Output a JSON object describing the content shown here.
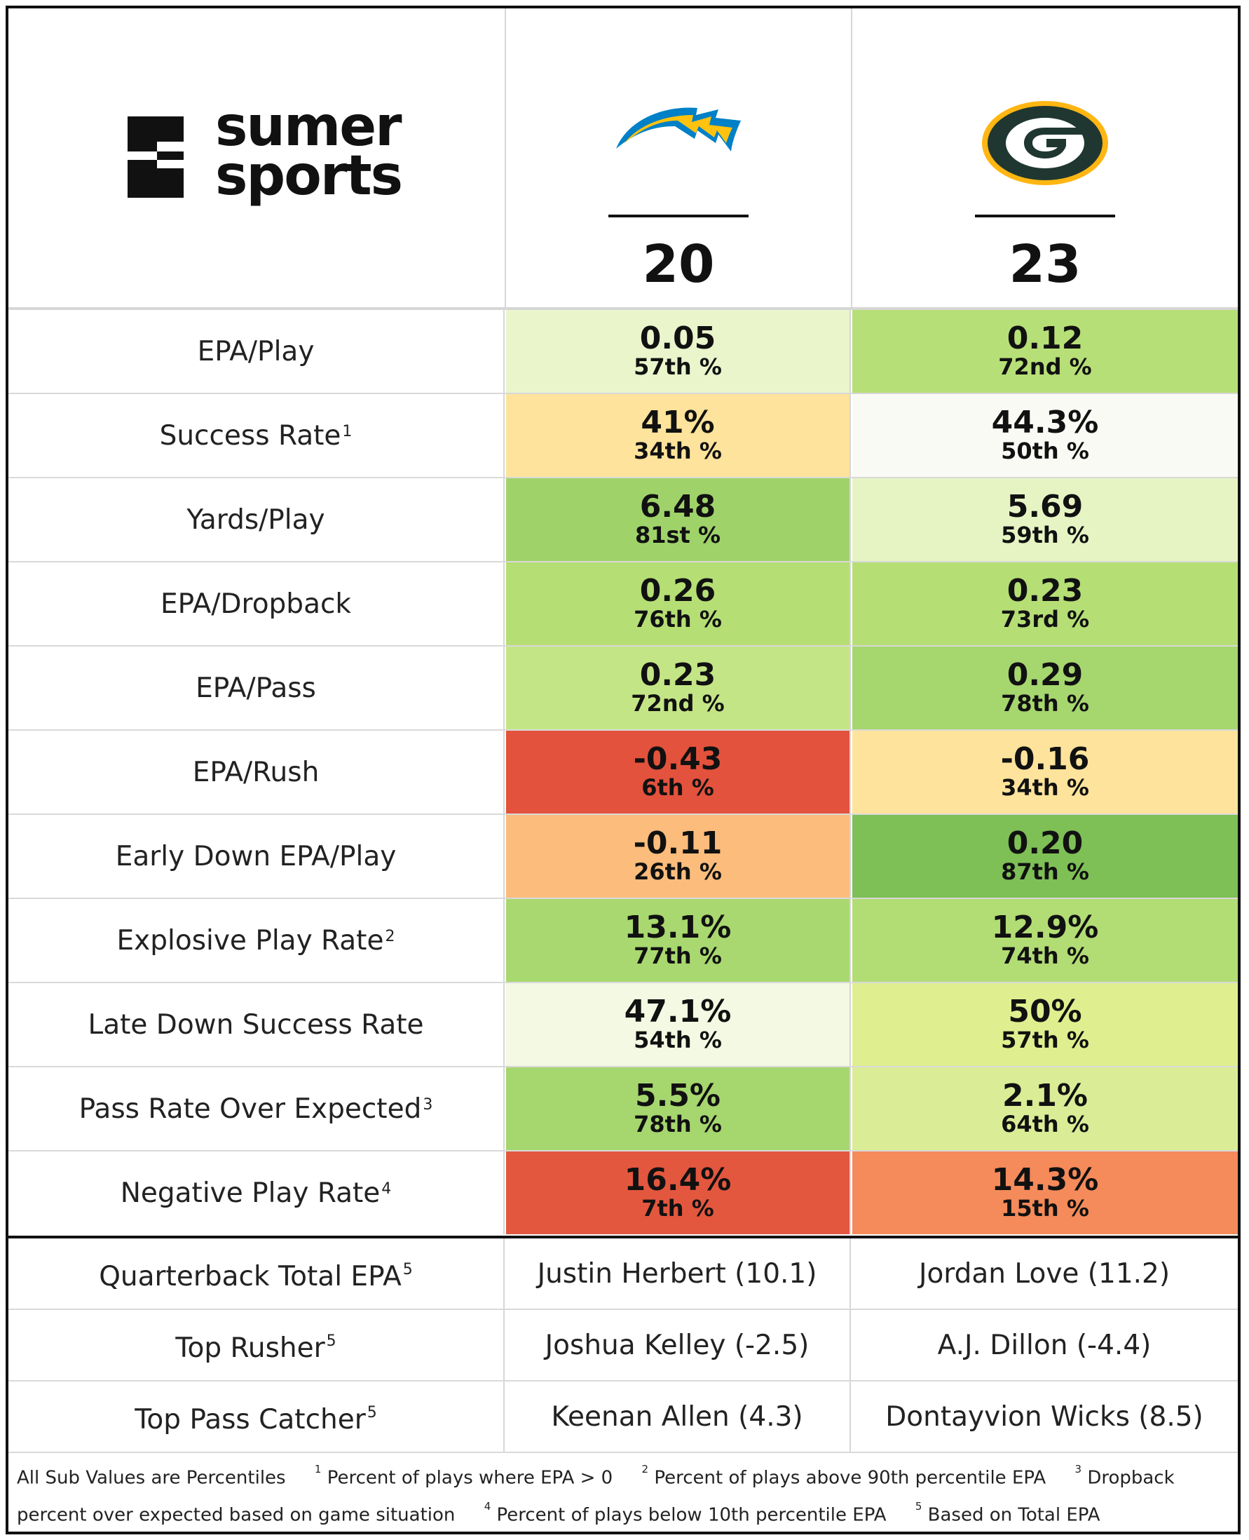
{
  "brand": {
    "line1": "sumer",
    "line2": "sports"
  },
  "teams": [
    {
      "name": "Chargers",
      "score": "20",
      "logo": "chargers-bolt-icon",
      "colors": {
        "primary": "#0080C6",
        "secondary": "#FFC20E"
      }
    },
    {
      "name": "Packers",
      "score": "23",
      "logo": "packers-g-icon",
      "colors": {
        "primary": "#203731",
        "secondary": "#FFB612"
      }
    }
  ],
  "metrics": [
    {
      "label": "EPA/Play",
      "footnote": "",
      "a": {
        "value": "0.05",
        "pct": "57th %",
        "bg": "#eaf5cc"
      },
      "b": {
        "value": "0.12",
        "pct": "72nd %",
        "bg": "#b7df77"
      }
    },
    {
      "label": "Success Rate",
      "footnote": "1",
      "a": {
        "value": "41%",
        "pct": "34th %",
        "bg": "#fde39b"
      },
      "b": {
        "value": "44.3%",
        "pct": "50th %",
        "bg": "#fafaf4"
      }
    },
    {
      "label": "Yards/Play",
      "footnote": "",
      "a": {
        "value": "6.48",
        "pct": "81st %",
        "bg": "#9fd36a"
      },
      "b": {
        "value": "5.69",
        "pct": "59th %",
        "bg": "#e6f4c4"
      }
    },
    {
      "label": "EPA/Dropback",
      "footnote": "",
      "a": {
        "value": "0.26",
        "pct": "76th %",
        "bg": "#b5de75"
      },
      "b": {
        "value": "0.23",
        "pct": "73rd %",
        "bg": "#b5de75"
      }
    },
    {
      "label": "EPA/Pass",
      "footnote": "",
      "a": {
        "value": "0.23",
        "pct": "72nd %",
        "bg": "#c4e586"
      },
      "b": {
        "value": "0.29",
        "pct": "78th %",
        "bg": "#a6d66e"
      }
    },
    {
      "label": "EPA/Rush",
      "footnote": "",
      "a": {
        "value": "-0.43",
        "pct": "6th %",
        "bg": "#e3523c"
      },
      "b": {
        "value": "-0.16",
        "pct": "34th %",
        "bg": "#fde39b"
      }
    },
    {
      "label": "Early Down EPA/Play",
      "footnote": "",
      "a": {
        "value": "-0.11",
        "pct": "26th %",
        "bg": "#fbbc7c"
      },
      "b": {
        "value": "0.20",
        "pct": "87th %",
        "bg": "#7ebf56"
      }
    },
    {
      "label": "Explosive Play Rate",
      "footnote": "2",
      "a": {
        "value": "13.1%",
        "pct": "77th %",
        "bg": "#a8d86f"
      },
      "b": {
        "value": "12.9%",
        "pct": "74th %",
        "bg": "#b2dc74"
      }
    },
    {
      "label": "Late Down Success Rate",
      "footnote": "",
      "a": {
        "value": "47.1%",
        "pct": "54th %",
        "bg": "#f3f9e2"
      },
      "b": {
        "value": "50%",
        "pct": "57th %",
        "bg": "#dfef8f"
      }
    },
    {
      "label": "Pass Rate Over Expected",
      "footnote": "3",
      "a": {
        "value": "5.5%",
        "pct": "78th %",
        "bg": "#a6d66e"
      },
      "b": {
        "value": "2.1%",
        "pct": "64th %",
        "bg": "#daed96"
      }
    },
    {
      "label": "Negative Play Rate",
      "footnote": "4",
      "a": {
        "value": "16.4%",
        "pct": "7th %",
        "bg": "#e3573f"
      },
      "b": {
        "value": "14.3%",
        "pct": "15th %",
        "bg": "#f58a5a"
      }
    }
  ],
  "leaders": [
    {
      "label": "Quarterback Total EPA",
      "footnote": "5",
      "a": "Justin Herbert (10.1)",
      "b": "Jordan Love (11.2)"
    },
    {
      "label": "Top Rusher",
      "footnote": "5",
      "a": "Joshua Kelley (-2.5)",
      "b": "A.J. Dillon (-4.4)"
    },
    {
      "label": "Top Pass Catcher",
      "footnote": "5",
      "a": "Keenan Allen (4.3)",
      "b": "Dontayvion Wicks (8.5)"
    }
  ],
  "footer": {
    "intro": "All Sub Values are Percentiles",
    "notes": [
      {
        "num": "1",
        "text": "Percent of plays where EPA > 0"
      },
      {
        "num": "2",
        "text": "Percent of plays above 90th percentile EPA"
      },
      {
        "num": "3",
        "text": "Dropback percent over expected based on game situation"
      },
      {
        "num": "4",
        "text": "Percent of plays below 10th percentile EPA"
      },
      {
        "num": "5",
        "text": "Based on Total EPA"
      }
    ]
  }
}
